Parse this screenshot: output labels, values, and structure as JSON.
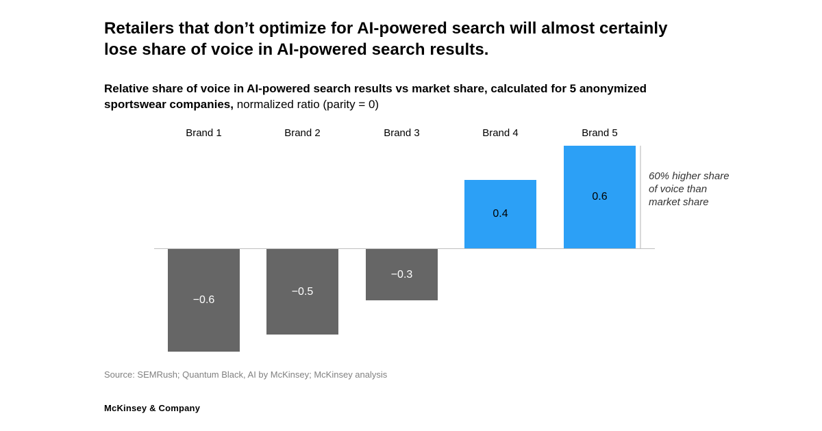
{
  "header": {
    "title_lines": [
      "Retailers that don’t optimize for AI-powered search will almost certainly",
      "lose share of voice in AI-powered search results."
    ],
    "subtitle_bold_line1": "Relative share of voice in AI-powered search results vs market share, calculated for 5 anonymized",
    "subtitle_bold_line2": "sportswear companies,",
    "subtitle_regular": "normalized ratio (parity = 0)"
  },
  "chart_data": {
    "type": "bar",
    "categories": [
      "Brand 1",
      "Brand 2",
      "Brand 3",
      "Brand 4",
      "Brand 5"
    ],
    "values": [
      -0.6,
      -0.5,
      -0.3,
      0.4,
      0.6
    ],
    "value_labels": [
      "−0.6",
      "−0.5",
      "−0.3",
      "0.4",
      "0.6"
    ],
    "baseline": 0,
    "ylim": [
      -0.6,
      0.6
    ],
    "grid": "off",
    "legend": "none",
    "annotation": "60% higher share of voice than market share",
    "colors": {
      "positive": "#2CA0F6",
      "negative": "#666666",
      "axis": "#BFBFBF",
      "annotation_line": "#D9D9D9"
    }
  },
  "footer": {
    "source": "Source: SEMRush; Quantum Black, AI by McKinsey; McKinsey analysis",
    "company": "McKinsey & Company"
  }
}
